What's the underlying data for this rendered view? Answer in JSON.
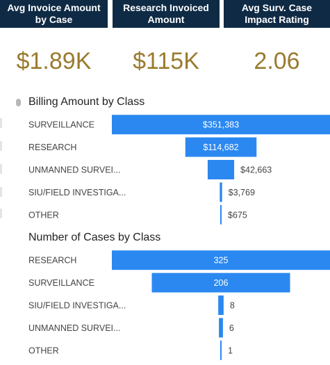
{
  "kpis": [
    {
      "label": "Avg Invoice Amount by Case",
      "value": "$1.89K"
    },
    {
      "label": "Research Invoiced Amount",
      "value": "$115K"
    },
    {
      "label": "Avg Surv. Case Impact Rating",
      "value": "2.06"
    }
  ],
  "colors": {
    "kpi_bg": "#0f2a44",
    "kpi_value": "#9a7b2e",
    "bar": "#2b88f0",
    "label_inside": "#ffffff",
    "label_outside": "#444444",
    "category_text": "#444444"
  },
  "chart_data": [
    {
      "type": "bar",
      "orientation": "funnel",
      "title": "Billing Amount by Class",
      "categories": [
        "SURVEILLANCE",
        "RESEARCH",
        "UNMANNED SURVEI...",
        "SIU/FIELD INVESTIGA...",
        "OTHER"
      ],
      "values": [
        351383,
        114682,
        42663,
        3769,
        675
      ],
      "labels": [
        "$351,383",
        "$114,682",
        "$42,663",
        "$3,769",
        "$675"
      ]
    },
    {
      "type": "bar",
      "orientation": "funnel",
      "title": "Number of Cases by Class",
      "categories": [
        "RESEARCH",
        "SURVEILLANCE",
        "SIU/FIELD INVESTIGA...",
        "UNMANNED SURVEI...",
        "OTHER"
      ],
      "values": [
        325,
        206,
        8,
        6,
        1
      ],
      "labels": [
        "325",
        "206",
        "8",
        "6",
        "1"
      ]
    }
  ]
}
